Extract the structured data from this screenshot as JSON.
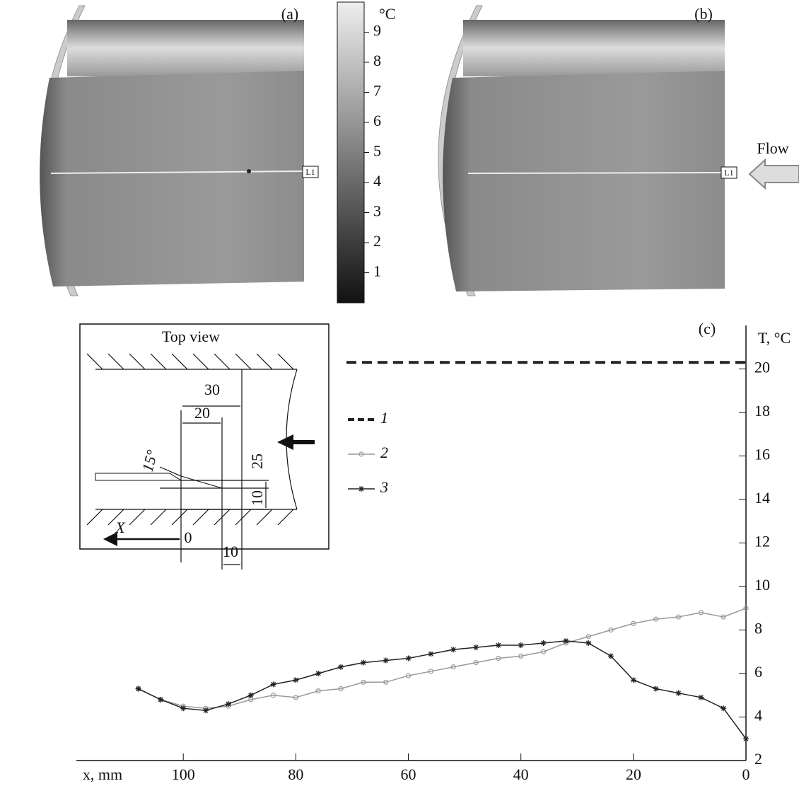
{
  "images": {
    "a": {
      "label": "(a)",
      "line_label": "L1"
    },
    "b": {
      "label": "(b)",
      "line_label": "L1",
      "flow_label": "Flow"
    }
  },
  "colorbar": {
    "label": "°C",
    "lim": [
      0,
      10
    ],
    "ticks": [
      1,
      2,
      3,
      4,
      5,
      6,
      7,
      8,
      9
    ]
  },
  "inset": {
    "title": "Top view",
    "dims": [
      "30",
      "20",
      "25",
      "15°",
      "10",
      "10"
    ],
    "axis_label": "X",
    "origin_label": "0"
  },
  "chart_data": {
    "type": "line",
    "panel_label": "(c)",
    "xlabel": "x, mm",
    "ylabel": "T, °C",
    "xlim": [
      119,
      0
    ],
    "xticks": [
      100,
      80,
      60,
      40,
      20,
      0
    ],
    "ylim": [
      2,
      22
    ],
    "yticks": [
      2,
      4,
      6,
      8,
      10,
      12,
      14,
      16,
      18,
      20
    ],
    "x": [
      108,
      104,
      100,
      96,
      92,
      88,
      84,
      80,
      76,
      72,
      68,
      64,
      60,
      56,
      52,
      48,
      44,
      40,
      36,
      32,
      28,
      24,
      20,
      16,
      12,
      8,
      4,
      0
    ],
    "series": [
      {
        "name": "1",
        "color": "#222222",
        "line_style": "dashed",
        "x": [
          71,
          0
        ],
        "values": [
          20.3,
          20.3
        ]
      },
      {
        "name": "2",
        "color": "#999999",
        "line_style": "solid",
        "marker": "circle",
        "values": [
          5.3,
          4.8,
          4.5,
          4.4,
          4.5,
          4.8,
          5.0,
          4.9,
          5.2,
          5.3,
          5.6,
          5.6,
          5.9,
          6.1,
          6.3,
          6.5,
          6.7,
          6.8,
          7.0,
          7.4,
          7.7,
          8.0,
          8.3,
          8.5,
          8.6,
          8.8,
          8.6,
          9.0
        ]
      },
      {
        "name": "3",
        "color": "#222222",
        "line_style": "solid",
        "marker": "star",
        "values": [
          5.3,
          4.8,
          4.4,
          4.3,
          4.6,
          5.0,
          5.5,
          5.7,
          6.0,
          6.3,
          6.5,
          6.6,
          6.7,
          6.9,
          7.1,
          7.2,
          7.3,
          7.3,
          7.4,
          7.5,
          7.4,
          6.8,
          5.7,
          5.3,
          5.1,
          4.9,
          4.4,
          3.0
        ]
      }
    ]
  }
}
